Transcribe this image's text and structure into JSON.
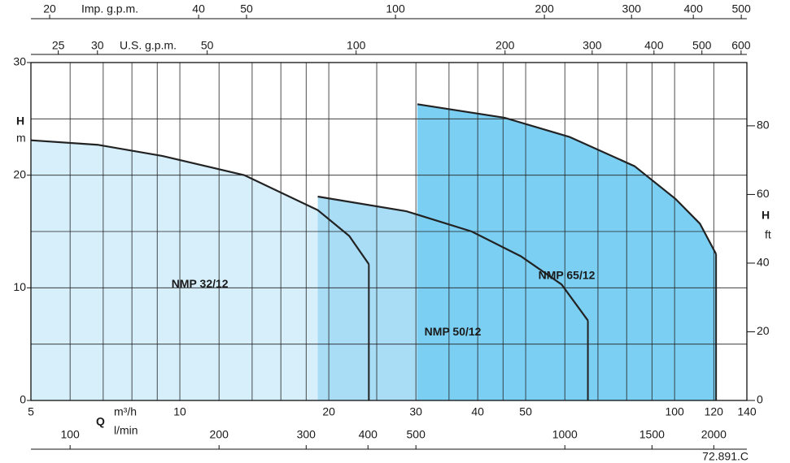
{
  "chart_data": {
    "type": "area",
    "xlabel": "m³/h",
    "x_symbol": "Q",
    "log_x": true,
    "xlim": [
      5,
      140
    ],
    "xticks": [
      5,
      10,
      20,
      30,
      40,
      50,
      100,
      120,
      140
    ],
    "xgrid": [
      5,
      6,
      7,
      8,
      9,
      10,
      12,
      14,
      16,
      18,
      20,
      25,
      30,
      35,
      40,
      45,
      50,
      60,
      70,
      80,
      90,
      100,
      120,
      140
    ],
    "ylabel": "H",
    "yunit": "m",
    "ylim": [
      0,
      30
    ],
    "yticks": [
      0,
      10,
      20,
      30
    ],
    "ygrid": [
      0,
      5,
      10,
      15,
      20,
      25,
      30
    ],
    "y2label": "H",
    "y2unit": "ft",
    "y2lim": [
      0,
      98.43
    ],
    "y2ticks": [
      0,
      20,
      40,
      60,
      80
    ],
    "x_axes": [
      {
        "label": "Imp. g.p.m.",
        "xlim": [
          18.33,
          513.2
        ],
        "xticks": [
          20,
          40,
          50,
          100,
          200,
          300,
          400,
          500
        ]
      },
      {
        "label": "U.S. g.p.m.",
        "xlim": [
          22.01,
          616.4
        ],
        "xticks": [
          25,
          30,
          50,
          100,
          200,
          300,
          400,
          500,
          600
        ]
      },
      {
        "label": "l/min",
        "xlim": [
          83.33,
          2333
        ],
        "xticks": [
          100,
          200,
          300,
          400,
          500,
          1000,
          1500,
          2000
        ]
      }
    ],
    "series": [
      {
        "name": "NMP 32/12",
        "color": "#d6effb",
        "x": [
          5,
          6.82,
          9.23,
          13.5,
          19.0,
          22.0,
          24.1
        ],
        "values": [
          23.1,
          22.7,
          21.7,
          20.0,
          16.9,
          14.6,
          12.1
        ]
      },
      {
        "name": "NMP 50/12",
        "color": "#a9ddf6",
        "x": [
          19.0,
          28.7,
          38.9,
          48.9,
          59.1,
          66.8
        ],
        "values": [
          18.1,
          16.8,
          15.0,
          12.8,
          10.3,
          7.1
        ]
      },
      {
        "name": "NMP 65/12",
        "color": "#7bcff3",
        "x": [
          30.2,
          45.3,
          61.3,
          83.0,
          100.4,
          112.5,
          121.3
        ],
        "values": [
          26.3,
          25.1,
          23.4,
          20.8,
          17.9,
          15.7,
          13.0
        ]
      }
    ],
    "footnote": "72.891.C"
  }
}
